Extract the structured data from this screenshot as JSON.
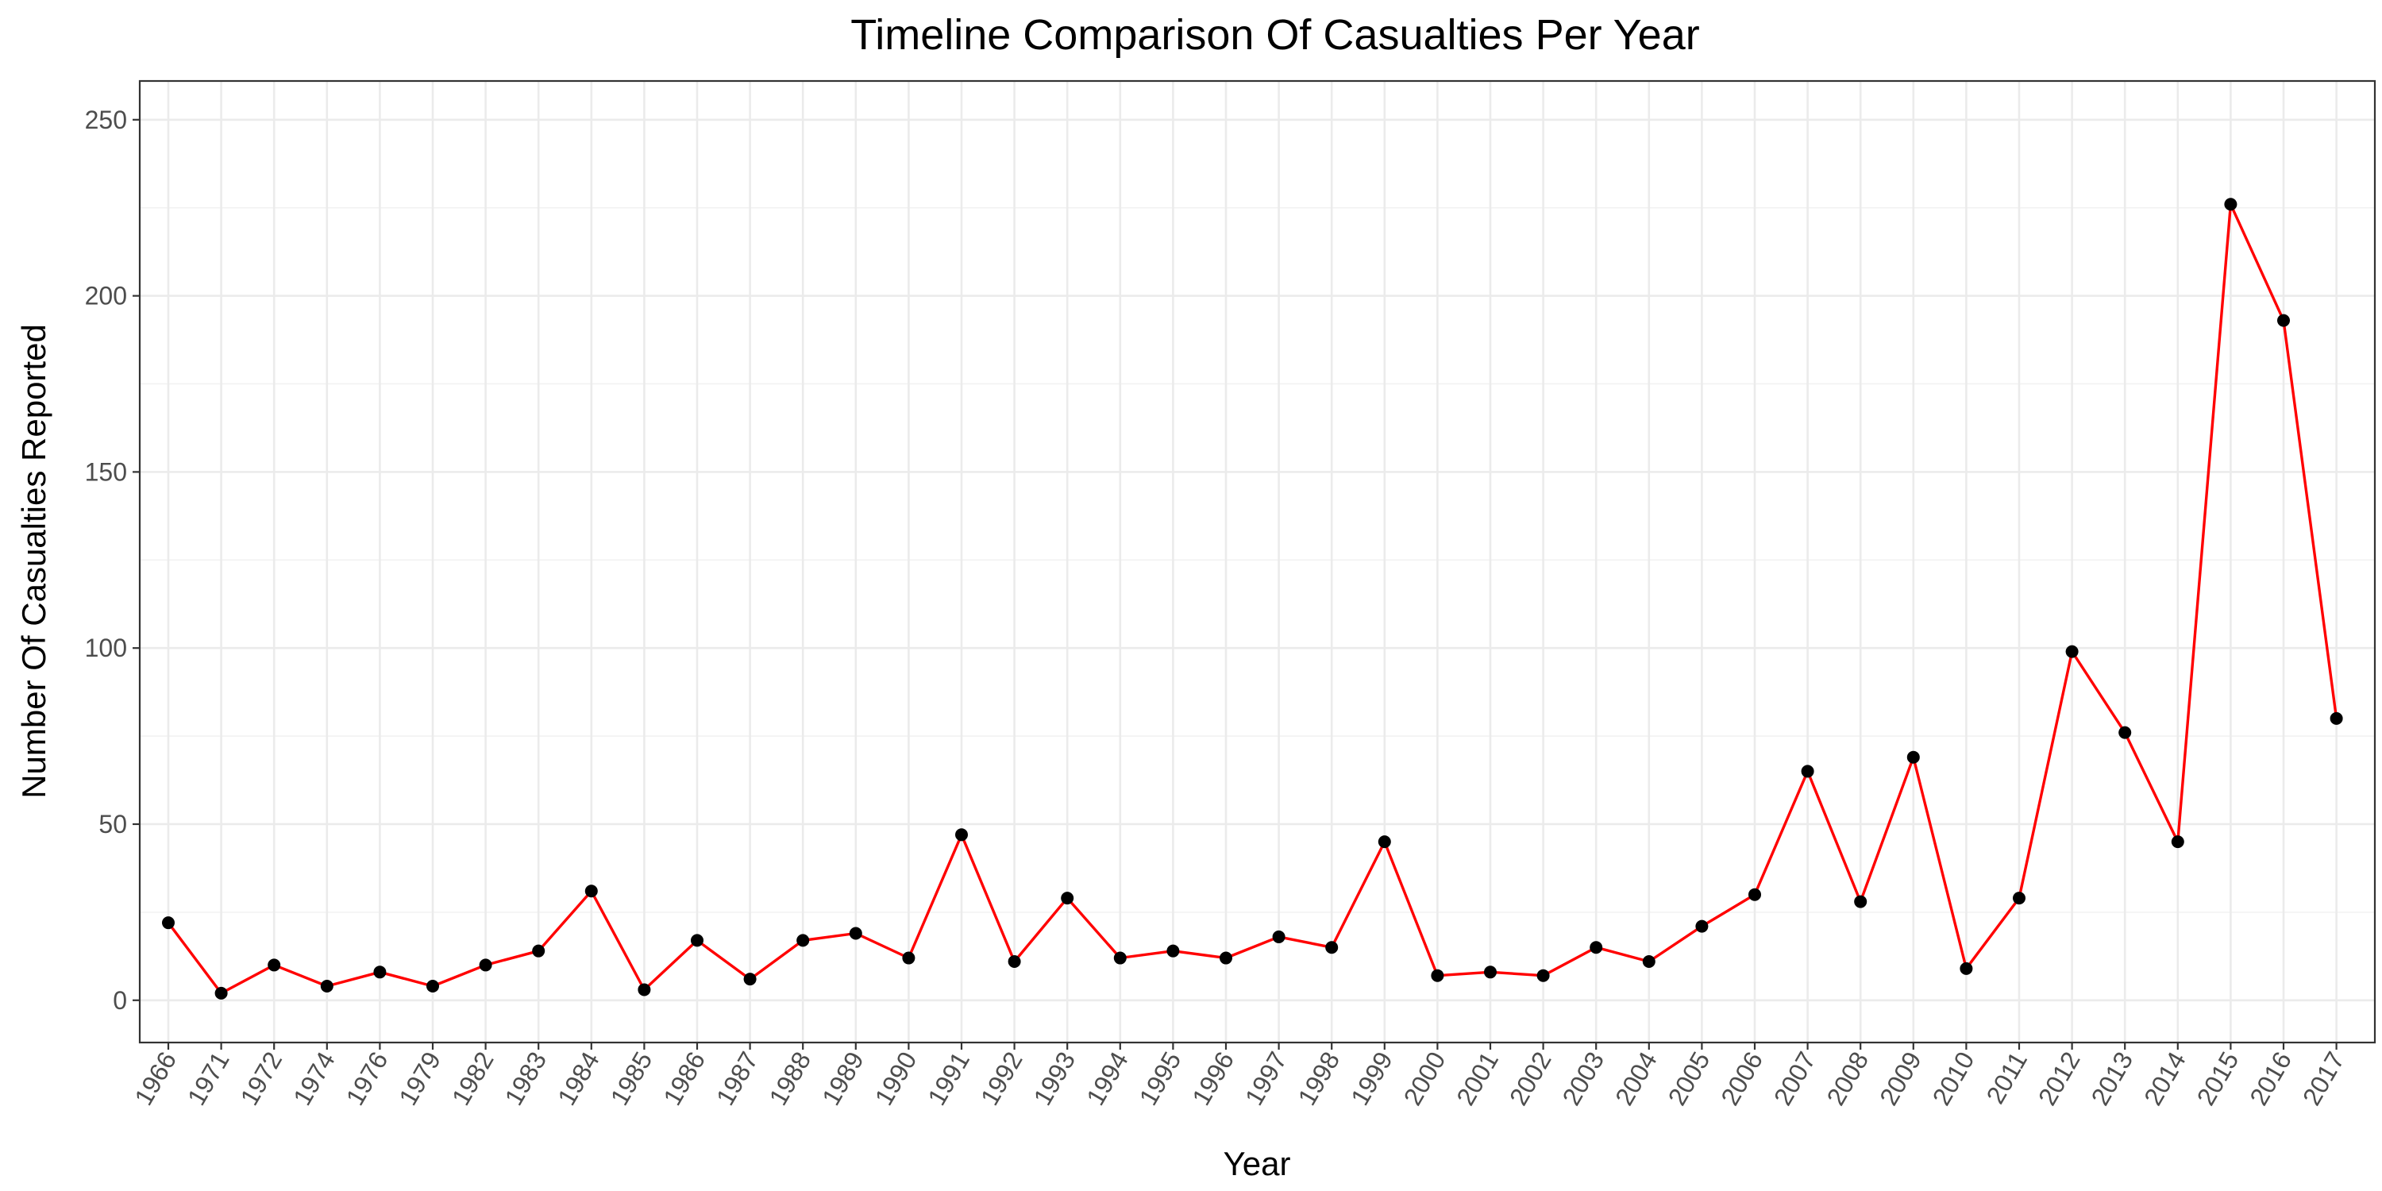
{
  "chart_data": {
    "type": "line",
    "title": "Timeline Comparison Of Casualties Per Year",
    "xlabel": "Year",
    "ylabel": "Number Of Casualties Reported",
    "ylim": [
      -12,
      261
    ],
    "yticks": [
      0,
      50,
      100,
      150,
      200,
      250
    ],
    "grid": true,
    "legend": "none",
    "colors": {
      "line": "#ff0000",
      "points": "#000000"
    },
    "categories": [
      "1966",
      "1971",
      "1972",
      "1974",
      "1976",
      "1979",
      "1982",
      "1983",
      "1984",
      "1985",
      "1986",
      "1987",
      "1988",
      "1989",
      "1990",
      "1991",
      "1992",
      "1993",
      "1994",
      "1995",
      "1996",
      "1997",
      "1998",
      "1999",
      "2000",
      "2001",
      "2002",
      "2003",
      "2004",
      "2005",
      "2006",
      "2007",
      "2008",
      "2009",
      "2010",
      "2011",
      "2012",
      "2013",
      "2014",
      "2015",
      "2016",
      "2017"
    ],
    "series": [
      {
        "values": [
          22,
          2,
          10,
          4,
          8,
          4,
          10,
          14,
          31,
          3,
          17,
          6,
          17,
          19,
          12,
          47,
          11,
          29,
          12,
          14,
          12,
          18,
          15,
          45,
          7,
          8,
          7,
          15,
          11,
          21,
          30,
          65,
          28,
          69,
          9,
          29,
          99,
          76,
          45,
          226,
          193,
          80
        ]
      }
    ]
  }
}
